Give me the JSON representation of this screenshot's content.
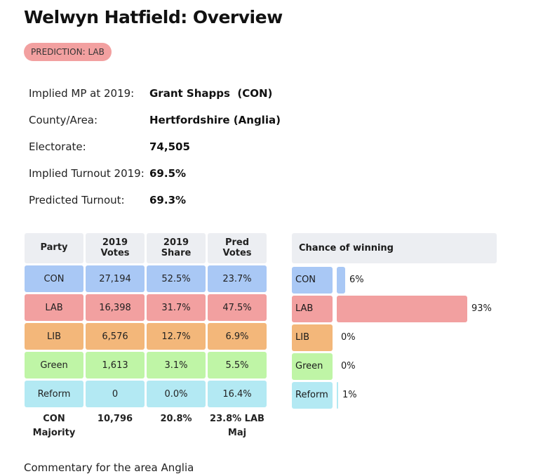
{
  "page": {
    "title": "Welwyn Hatfield: Overview",
    "prediction_badge": "PREDICTION: LAB"
  },
  "info": [
    {
      "label": "Implied MP at 2019:",
      "value": "Grant Shapps  (CON)"
    },
    {
      "label": "County/Area:",
      "value": "Hertfordshire (Anglia)"
    },
    {
      "label": "Electorate:",
      "value": "74,505"
    },
    {
      "label": "Implied Turnout 2019:",
      "value": "69.5%"
    },
    {
      "label": "Predicted Turnout:",
      "value": "69.3%"
    }
  ],
  "table": {
    "headers": [
      "Party",
      "2019\nVotes",
      "2019\nShare",
      "Pred\nVotes"
    ],
    "rows": [
      {
        "party": "CON",
        "votes": "27,194",
        "share": "52.5%",
        "pred": "23.7%"
      },
      {
        "party": "LAB",
        "votes": "16,398",
        "share": "31.7%",
        "pred": "47.5%"
      },
      {
        "party": "LIB",
        "votes": "6,576",
        "share": "12.7%",
        "pred": "6.9%"
      },
      {
        "party": "Green",
        "votes": "1,613",
        "share": "3.1%",
        "pred": "5.5%"
      },
      {
        "party": "Reform",
        "votes": "0",
        "share": "0.0%",
        "pred": "16.4%"
      }
    ],
    "footer": [
      "CON Majority",
      "10,796",
      "20.8%",
      "23.8% LAB Maj"
    ]
  },
  "chance": {
    "header": "Chance of winning",
    "rows": [
      {
        "party": "CON",
        "label": "6%",
        "value": 6
      },
      {
        "party": "LAB",
        "label": "93%",
        "value": 93
      },
      {
        "party": "LIB",
        "label": "0%",
        "value": 0
      },
      {
        "party": "Green",
        "label": "0%",
        "value": 0
      },
      {
        "party": "Reform",
        "label": "1%",
        "value": 1
      }
    ]
  },
  "colors": {
    "CON": "#a9c8f5",
    "LAB": "#f2a0a0",
    "LIB": "#f3b77a",
    "Green": "#bff5a6",
    "Reform": "#b3e9f3"
  },
  "footer_text": "Commentary for the area Anglia"
}
